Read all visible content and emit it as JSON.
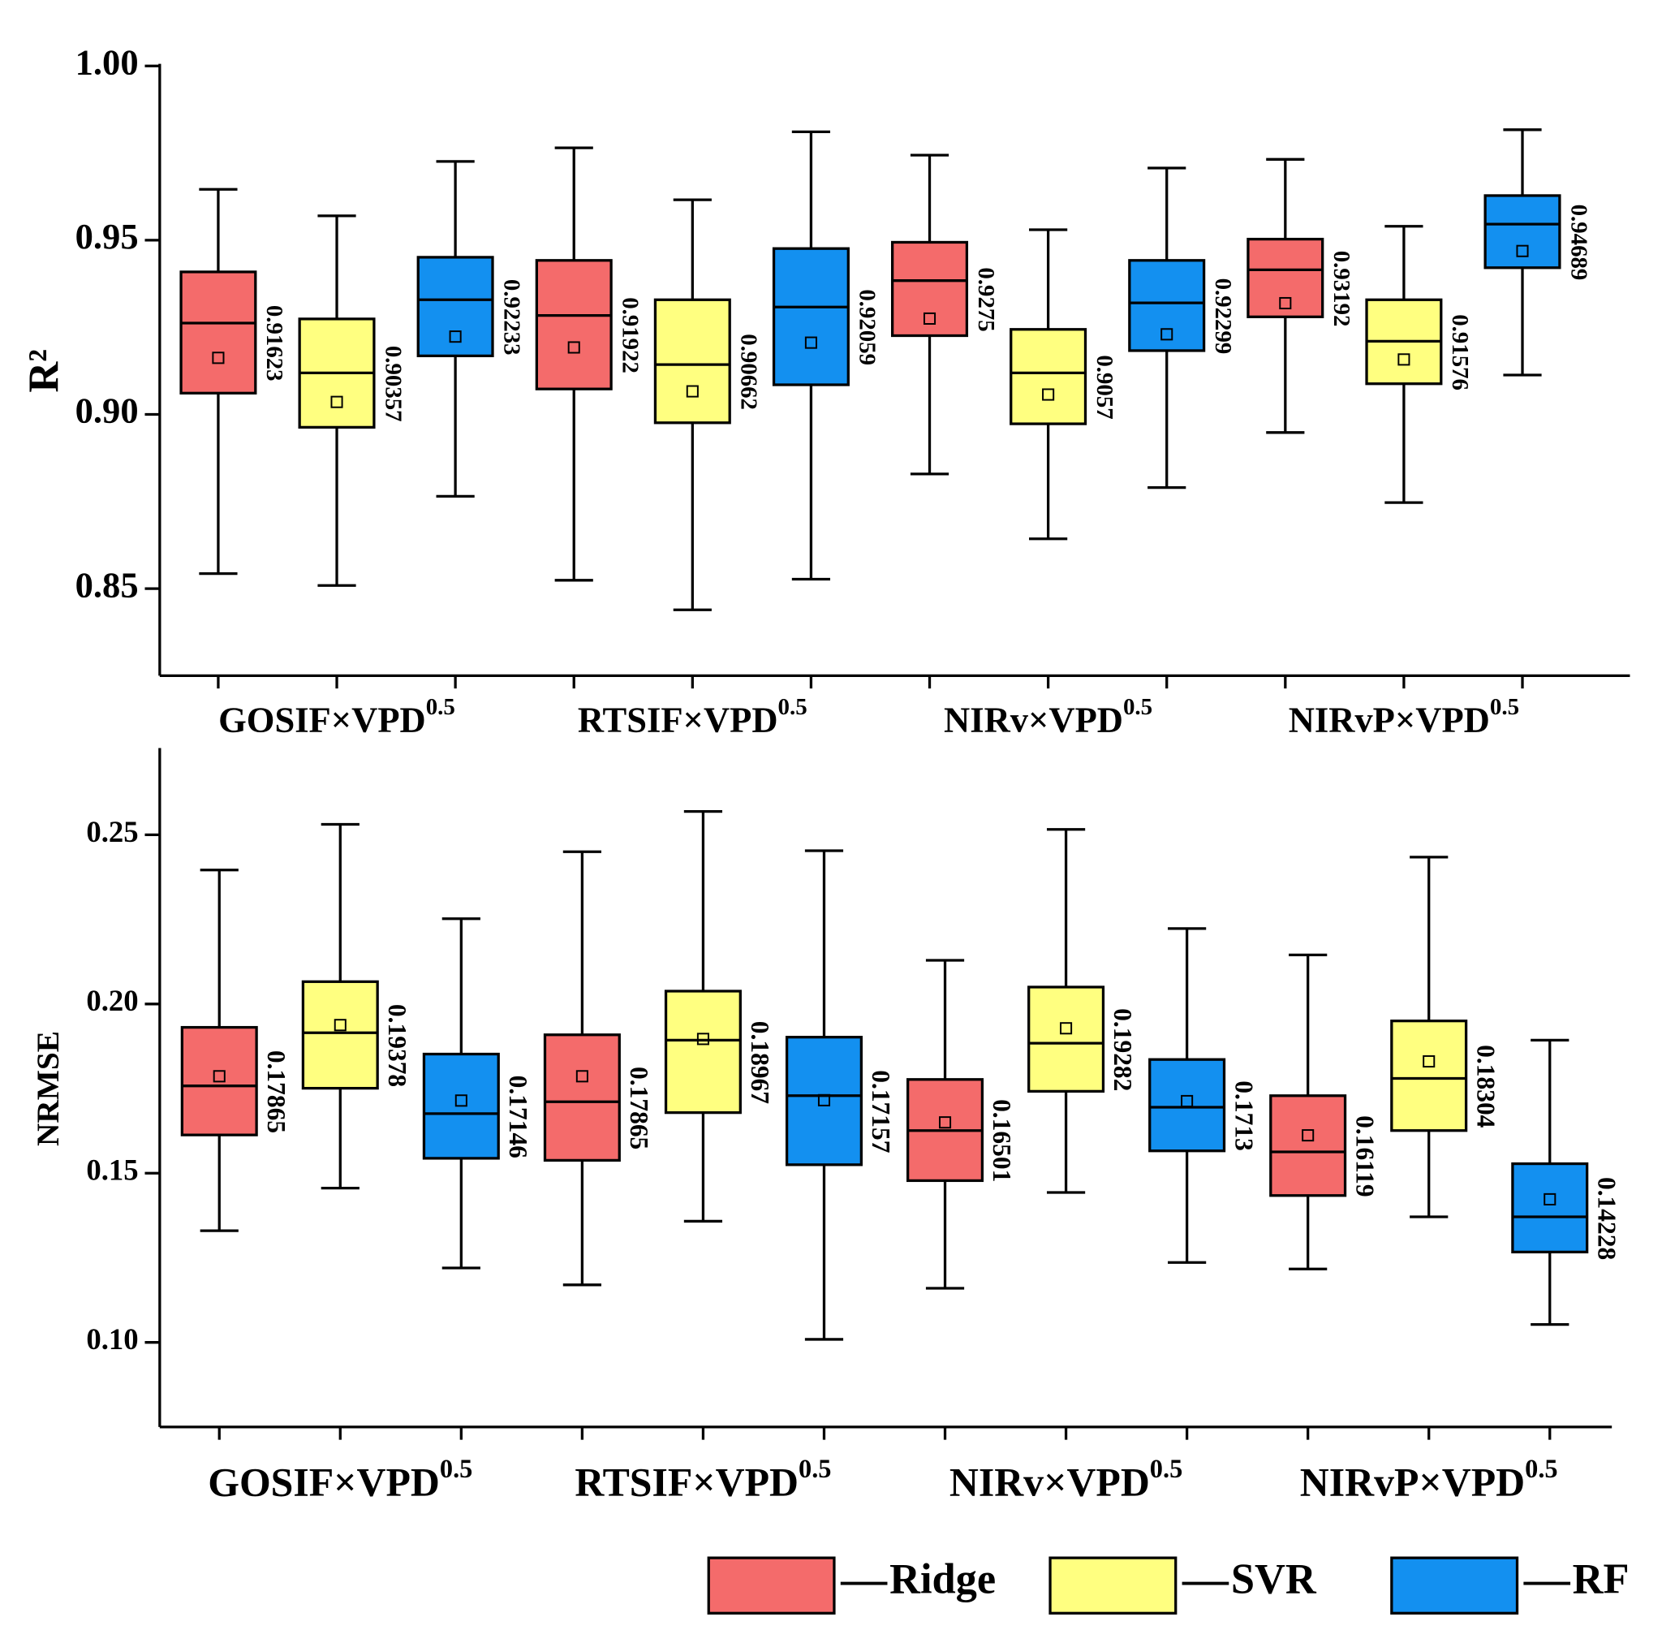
{
  "chart_data": [
    {
      "type": "box",
      "ylabel": "R²",
      "categories": [
        "GOSIF×VPD",
        "RTSIF×VPD",
        "NIRv×VPD",
        "NIRvP×VPD"
      ],
      "category_superscript": "0.5",
      "ylim": [
        0.825,
        1.0
      ],
      "yticks": [
        {
          "value": 1.0,
          "label": "1.00"
        },
        0.95,
        {
          "value": 0.9,
          "label": "0.90"
        },
        0.85
      ],
      "series": [
        {
          "name": "Ridge",
          "color": "#f46b6b",
          "high": [
            0.9646,
            0.9765,
            0.9744,
            0.9732
          ],
          "q3": [
            0.9409,
            0.9442,
            0.9494,
            0.9503
          ],
          "median": [
            0.9262,
            0.9284,
            0.9384,
            0.9415
          ],
          "q1": [
            0.9061,
            0.9073,
            0.9226,
            0.928
          ],
          "low": [
            0.8543,
            0.8524,
            0.8829,
            0.8948
          ],
          "mean": [
            0.91623,
            0.91922,
            0.9275,
            0.93192
          ]
        },
        {
          "name": "SVR",
          "color": "#ffff80",
          "high": [
            0.957,
            0.9616,
            0.953,
            0.954
          ],
          "q3": [
            0.9274,
            0.9329,
            0.9244,
            0.9329
          ],
          "median": [
            0.9119,
            0.9143,
            0.9119,
            0.921
          ],
          "q1": [
            0.8963,
            0.8976,
            0.8973,
            0.9088
          ],
          "low": [
            0.8509,
            0.8439,
            0.8643,
            0.8747
          ],
          "mean": [
            0.90357,
            0.90662,
            0.9057,
            0.91576
          ]
        },
        {
          "name": "RF",
          "color": "#1390f0",
          "high": [
            0.9726,
            0.9811,
            0.9707,
            0.9817
          ],
          "q3": [
            0.9451,
            0.9476,
            0.9442,
            0.9628
          ],
          "median": [
            0.9329,
            0.9308,
            0.932,
            0.9546
          ],
          "q1": [
            0.9168,
            0.9085,
            0.9183,
            0.9421
          ],
          "low": [
            0.8765,
            0.8527,
            0.879,
            0.9113
          ],
          "mean": [
            0.92233,
            0.92059,
            0.92299,
            0.94689
          ]
        }
      ]
    },
    {
      "type": "box",
      "ylabel": "NRMSE",
      "categories": [
        "GOSIF×VPD",
        "RTSIF×VPD",
        "NIRv×VPD",
        "NIRvP×VPD"
      ],
      "category_superscript": "0.5",
      "ylim": [
        0.075,
        0.275
      ],
      "yticks": [
        0.25,
        {
          "value": 0.2,
          "label": "0.20"
        },
        0.15,
        {
          "value": 0.1,
          "label": "0.10"
        }
      ],
      "series": [
        {
          "color": "#f46b6b",
          "high": [
            0.2396,
            0.245,
            0.2129,
            0.2145
          ],
          "q3": [
            0.1931,
            0.1909,
            0.1777,
            0.1729
          ],
          "median": [
            0.1758,
            0.1711,
            0.1626,
            0.1563
          ],
          "q1": [
            0.1613,
            0.1538,
            0.1478,
            0.1434
          ],
          "low": [
            0.133,
            0.117,
            0.116,
            0.1217
          ],
          "mean": [
            0.17865,
            0.17865,
            0.16501,
            0.16119
          ]
        },
        {
          "color": "#ffff80",
          "high": [
            0.2531,
            0.2569,
            0.2516,
            0.2434
          ],
          "q3": [
            0.2066,
            0.2038,
            0.205,
            0.195
          ],
          "median": [
            0.1915,
            0.1893,
            0.1884,
            0.178
          ],
          "q1": [
            0.1751,
            0.1679,
            0.1742,
            0.1626
          ],
          "low": [
            0.1456,
            0.1358,
            0.1443,
            0.1371
          ],
          "mean": [
            0.19378,
            0.18967,
            0.19282,
            0.18304
          ]
        },
        {
          "color": "#1390f0",
          "high": [
            0.2252,
            0.2453,
            0.2223,
            0.1893
          ],
          "q3": [
            0.1852,
            0.1902,
            0.1836,
            0.1528
          ],
          "median": [
            0.1676,
            0.1729,
            0.1695,
            0.1371
          ],
          "q1": [
            0.1544,
            0.1525,
            0.1566,
            0.1267
          ],
          "low": [
            0.122,
            0.1009,
            0.1236,
            0.1053
          ],
          "mean": [
            0.17146,
            0.17157,
            0.1713,
            0.14228
          ]
        }
      ]
    }
  ]
}
